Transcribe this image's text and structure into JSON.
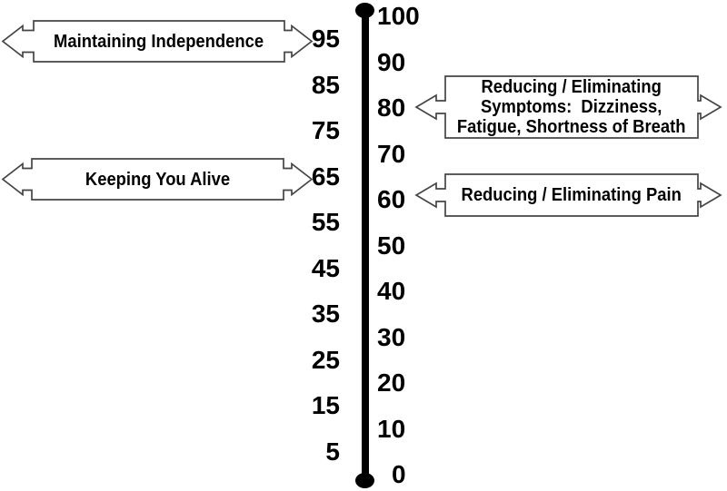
{
  "scale": {
    "min": 0,
    "max": 100,
    "left_ticks": [
      95,
      85,
      75,
      65,
      55,
      45,
      35,
      25,
      15,
      5
    ],
    "right_ticks": [
      100,
      90,
      80,
      70,
      60,
      50,
      40,
      30,
      20,
      10,
      0
    ]
  },
  "callouts": [
    {
      "id": "maintaining-independence",
      "side": "left",
      "points_to": 95,
      "lines": [
        "Maintaining Independence"
      ]
    },
    {
      "id": "keeping-you-alive",
      "side": "left",
      "points_to": 65,
      "lines": [
        "Keeping You Alive"
      ]
    },
    {
      "id": "reducing-symptoms",
      "side": "right",
      "points_to": 80,
      "lines": [
        "Reducing / Eliminating",
        "Symptoms:  Dizziness,",
        "Fatigue, Shortness of Breath"
      ]
    },
    {
      "id": "reducing-pain",
      "side": "right",
      "points_to": 60,
      "lines": [
        "Reducing / Eliminating Pain"
      ]
    }
  ],
  "colors": {
    "ink": "#000000",
    "callout_border": "#454545",
    "callout_fill": "#ffffff",
    "background": "#ffffff"
  }
}
